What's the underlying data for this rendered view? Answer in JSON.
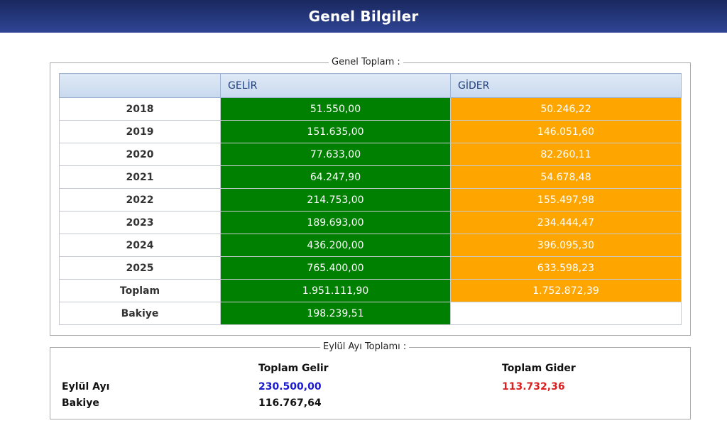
{
  "header": {
    "title": "Genel Bilgiler"
  },
  "genel_toplam": {
    "legend": "Genel Toplam :",
    "columns": [
      "",
      "GELİR",
      "GİDER"
    ],
    "rows": [
      {
        "label": "2018",
        "gelir": "51.550,00",
        "gider": "50.246,22"
      },
      {
        "label": "2019",
        "gelir": "151.635,00",
        "gider": "146.051,60"
      },
      {
        "label": "2020",
        "gelir": "77.633,00",
        "gider": "82.260,11"
      },
      {
        "label": "2021",
        "gelir": "64.247,90",
        "gider": "54.678,48"
      },
      {
        "label": "2022",
        "gelir": "214.753,00",
        "gider": "155.497,98"
      },
      {
        "label": "2023",
        "gelir": "189.693,00",
        "gider": "234.444,47"
      },
      {
        "label": "2024",
        "gelir": "436.200,00",
        "gider": "396.095,30"
      },
      {
        "label": "2025",
        "gelir": "765.400,00",
        "gider": "633.598,23"
      },
      {
        "label": "Toplam",
        "gelir": "1.951.111,90",
        "gider": "1.752.872,39"
      },
      {
        "label": "Bakiye",
        "gelir": "198.239,51",
        "gider": ""
      }
    ],
    "colors": {
      "gelir": "#008000",
      "gider": "#ffa500"
    }
  },
  "aylik": {
    "legend": "Eylül Ayı Toplamı :",
    "toplam_gelir_label": "Toplam Gelir",
    "toplam_gider_label": "Toplam Gider",
    "ay_label": "Eylül Ayı",
    "bakiye_label": "Bakiye",
    "gelir_value": "230.500,00",
    "gider_value": "113.732,36",
    "bakiye_value": "116.767,64",
    "colors": {
      "gelir": "#1a1acf",
      "gider": "#d92020"
    }
  }
}
